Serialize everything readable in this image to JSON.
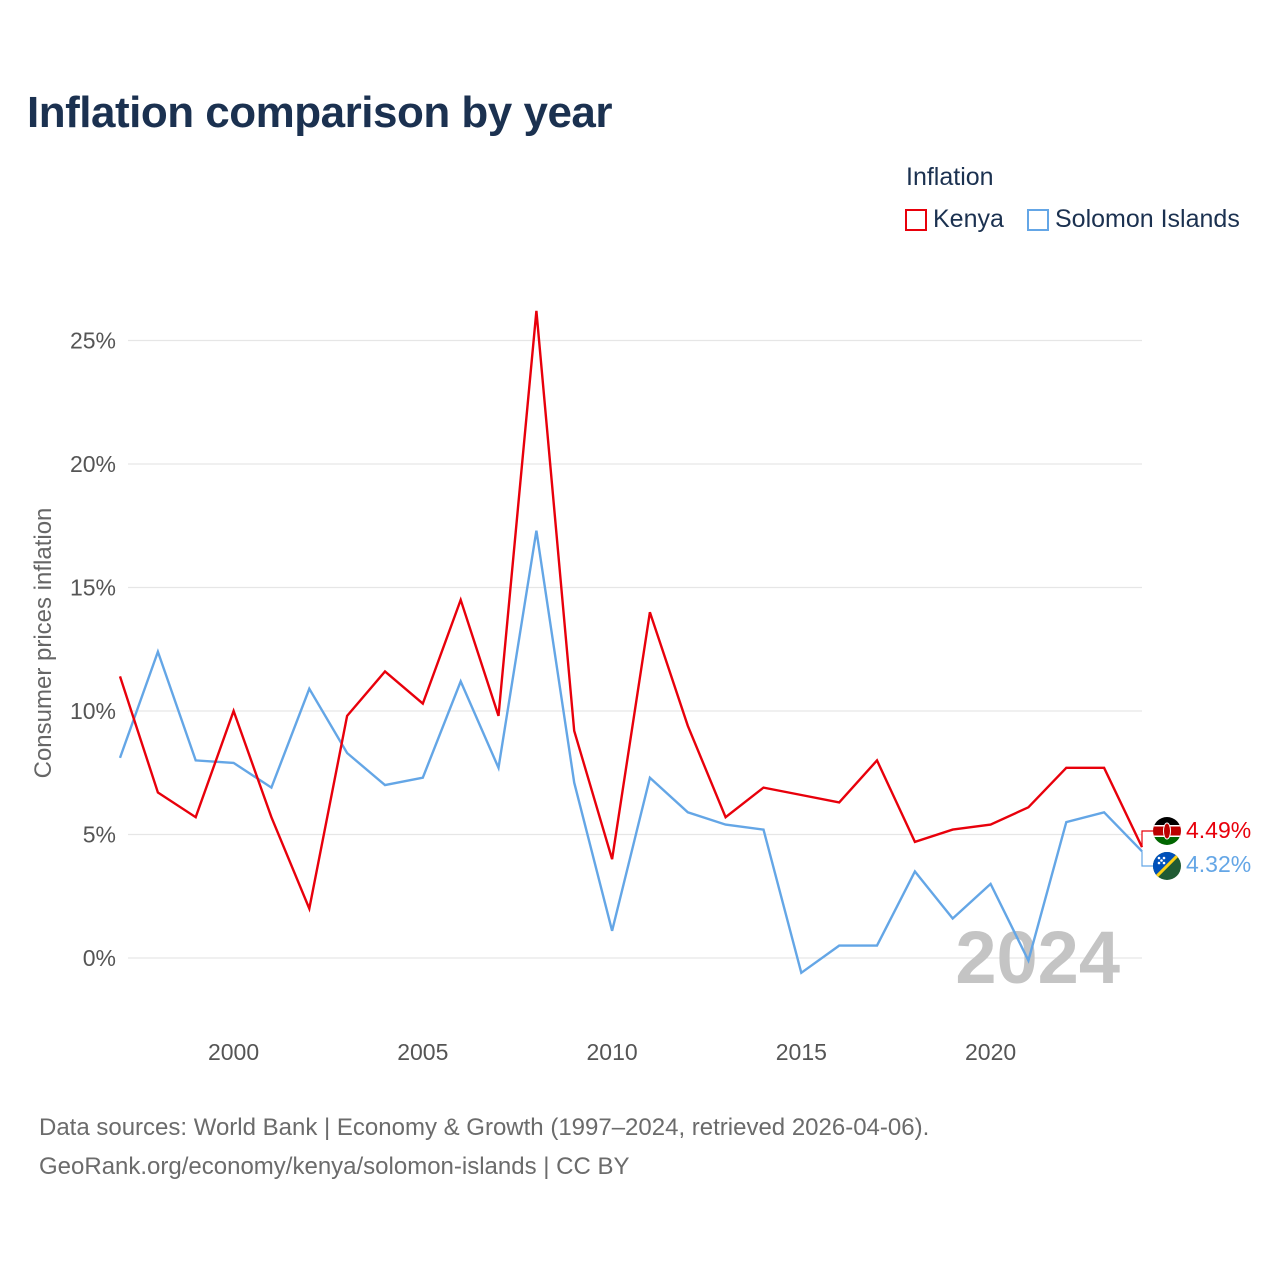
{
  "title": "Inflation comparison by year",
  "legend": {
    "title": "Inflation",
    "items": [
      {
        "label": "Kenya",
        "color": "#e8000b"
      },
      {
        "label": "Solomon Islands",
        "color": "#64a6e6"
      }
    ]
  },
  "source": {
    "line1": "Data sources: World Bank | Economy & Growth (1997–2024, retrieved 2026-04-06).",
    "line2": "GeoRank.org/economy/kenya/solomon-islands | CC BY"
  },
  "chart_data": {
    "type": "line",
    "title": "Inflation comparison by year",
    "xlabel": "",
    "ylabel": "Consumer prices inflation",
    "xlim": [
      1997,
      2024
    ],
    "ylim": [
      -2,
      27
    ],
    "x_ticks": [
      2000,
      2005,
      2010,
      2015,
      2020
    ],
    "y_ticks": [
      0,
      5,
      10,
      15,
      20,
      25
    ],
    "y_tick_labels": [
      "0%",
      "5%",
      "10%",
      "15%",
      "20%",
      "25%"
    ],
    "grid": true,
    "legend_position": "top-right",
    "year_watermark": "2024",
    "x": [
      1997,
      1998,
      1999,
      2000,
      2001,
      2002,
      2003,
      2004,
      2005,
      2006,
      2007,
      2008,
      2009,
      2010,
      2011,
      2012,
      2013,
      2014,
      2015,
      2016,
      2017,
      2018,
      2019,
      2020,
      2021,
      2022,
      2023,
      2024
    ],
    "series": [
      {
        "name": "Kenya",
        "color": "#e8000b",
        "end_label": "4.49%",
        "values": [
          11.4,
          6.7,
          5.7,
          10.0,
          5.7,
          2.0,
          9.8,
          11.6,
          10.3,
          14.5,
          9.8,
          26.2,
          9.2,
          4.0,
          14.0,
          9.4,
          5.7,
          6.9,
          6.6,
          6.3,
          8.0,
          4.7,
          5.2,
          5.4,
          6.1,
          7.7,
          7.7,
          4.49
        ]
      },
      {
        "name": "Solomon Islands",
        "color": "#64a6e6",
        "end_label": "4.32%",
        "values": [
          8.1,
          12.4,
          8.0,
          7.9,
          6.9,
          10.9,
          8.3,
          7.0,
          7.3,
          11.2,
          7.7,
          17.3,
          7.1,
          1.1,
          7.3,
          5.9,
          5.4,
          5.2,
          -0.6,
          0.5,
          0.5,
          3.5,
          1.6,
          3.0,
          -0.1,
          5.5,
          5.9,
          4.32
        ]
      }
    ]
  }
}
